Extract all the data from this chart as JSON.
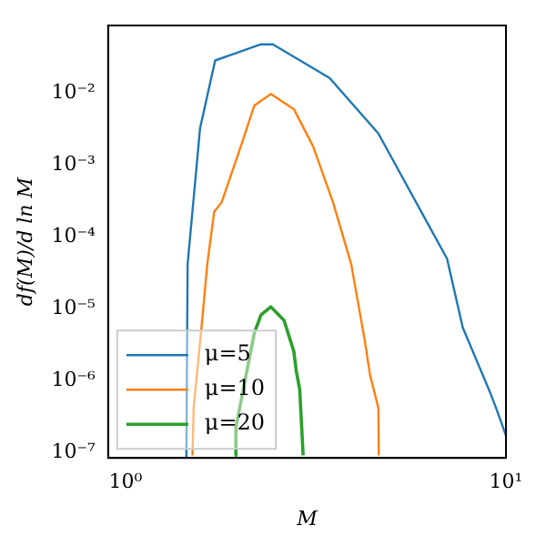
{
  "chart_data": {
    "type": "line",
    "xlabel": "M",
    "ylabel": "df(M)/d ln M",
    "log": "xy",
    "grid": false,
    "legend": "bottom left",
    "marker": "none",
    "line_style": "solid",
    "xlim": [
      0.9,
      10
    ],
    "xticks": [
      {
        "value": 1,
        "label": "10⁰"
      },
      {
        "value": 10,
        "label": "10¹"
      }
    ],
    "ylim": [
      8.3e-08,
      0.086
    ],
    "yticks": [
      {
        "value": 1e-07,
        "label": "10⁻⁷"
      },
      {
        "value": 1e-06,
        "label": "10⁻⁶"
      },
      {
        "value": 1e-05,
        "label": "10⁻⁵"
      },
      {
        "value": 0.0001,
        "label": "10⁻⁴"
      },
      {
        "value": 0.001,
        "label": "10⁻³"
      },
      {
        "value": 0.01,
        "label": "10⁻²"
      }
    ],
    "series": [
      {
        "name": "μ=5",
        "color": "#1f77b4",
        "x": [
          1.445,
          1.456,
          1.57,
          1.72,
          2.27,
          2.44,
          3.44,
          4.62,
          7.0,
          7.7,
          9.1,
          9.42,
          10
        ],
        "values": [
          8.5e-08,
          4.1e-05,
          0.0032,
          0.028,
          0.047,
          0.047,
          0.016,
          0.0027,
          4.9e-05,
          5.4e-06,
          6.6e-07,
          4.1e-07,
          1.7e-07
        ]
      },
      {
        "name": "μ=10",
        "color": "#ff7f0e",
        "x": [
          1.5,
          1.51,
          1.59,
          1.64,
          1.71,
          1.79,
          2.01,
          2.18,
          2.41,
          2.77,
          3.11,
          3.51,
          3.92,
          4.25,
          4.39,
          4.62,
          4.63
        ],
        "values": [
          9e-08,
          4.1e-07,
          6.8e-06,
          4.1e-05,
          0.00022,
          0.0003,
          0.0018,
          0.0066,
          0.0096,
          0.0059,
          0.0018,
          0.0003,
          4.1e-05,
          3.7e-06,
          1.2e-06,
          4.1e-07,
          9e-08
        ]
      },
      {
        "name": "μ=20",
        "color": "#2ca02c",
        "x": [
          1.94,
          1.95,
          2.18,
          2.27,
          2.41,
          2.61,
          2.77,
          2.81,
          2.87,
          2.93
        ],
        "values": [
          9e-08,
          2.2e-07,
          4.5e-06,
          8.1e-06,
          1.05e-05,
          6.8e-06,
          2.5e-06,
          1.35e-06,
          7.4e-07,
          9e-08
        ]
      }
    ]
  }
}
